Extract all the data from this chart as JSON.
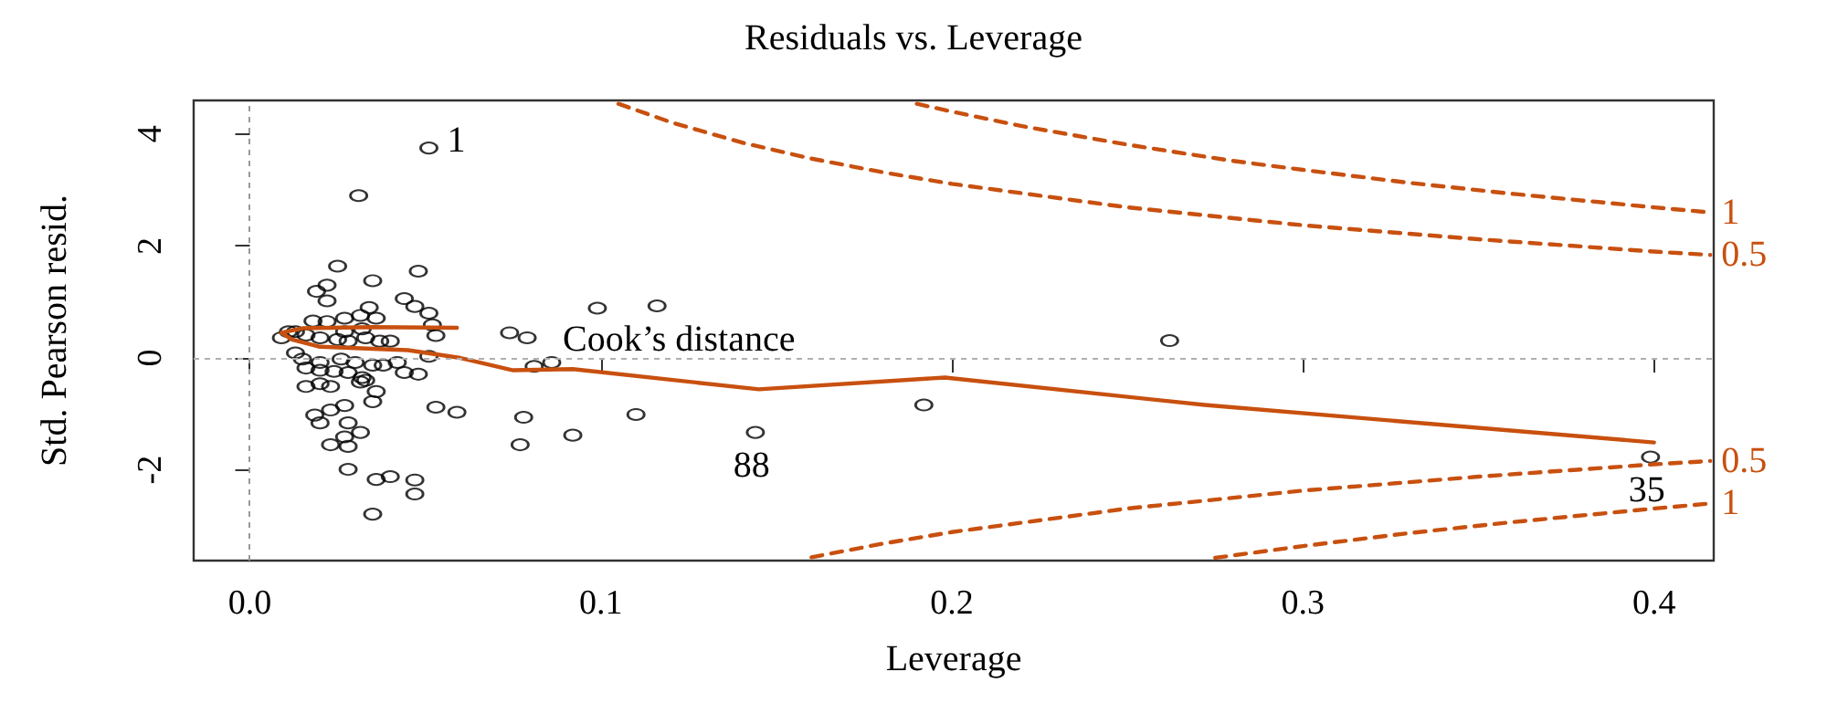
{
  "chart_data": {
    "type": "scatter",
    "title": "Residuals vs. Leverage",
    "xlabel": "Leverage",
    "ylabel": "Std. Pearson resid.",
    "xlim": [
      -0.016,
      0.417
    ],
    "ylim": [
      -3.62,
      4.6
    ],
    "xticks": [
      {
        "value": 0,
        "label": "0.0"
      },
      0.1,
      0.2,
      0.3,
      0.4
    ],
    "yticks": [
      -2,
      0,
      2,
      4
    ],
    "grid": false,
    "ref_lines": [
      {
        "axis": "x",
        "value": 0,
        "color": "#999999",
        "line_style": "dashed"
      },
      {
        "axis": "y",
        "value": 0,
        "color": "#b0b0b0",
        "line_style": "dashed"
      }
    ],
    "annotations": [
      {
        "text": "1",
        "x": 0.051,
        "y": 3.75
      },
      "Cook’s distance",
      {
        "text": "88",
        "x": 0.144,
        "y": -1.33
      },
      {
        "text": "35",
        "x": 0.399,
        "y": -1.77
      }
    ],
    "series": [
      {
        "type": "scatter",
        "color": "#000000",
        "marker": "circle",
        "x": [
          0.051,
          0.031,
          0.025,
          0.048,
          0.022,
          0.019,
          0.035,
          0.022,
          0.044,
          0.047,
          0.051,
          0.034,
          0.036,
          0.052,
          0.053,
          0.027,
          0.018,
          0.022,
          0.0315,
          0.011,
          0.013,
          0.009,
          0.016,
          0.02,
          0.025,
          0.028,
          0.033,
          0.037,
          0.04,
          0.032,
          0.027,
          0.013,
          0.015,
          0.02,
          0.026,
          0.03,
          0.035,
          0.038,
          0.042,
          0.051,
          0.016,
          0.02,
          0.024,
          0.028,
          0.032,
          0.0315,
          0.033,
          0.044,
          0.048,
          0.016,
          0.02,
          0.023,
          0.036,
          0.035,
          0.027,
          0.023,
          0.0185,
          0.02,
          0.028,
          0.0315,
          0.027,
          0.023,
          0.028,
          0.028,
          0.036,
          0.04,
          0.047,
          0.047,
          0.035,
          0.053,
          0.059,
          0.074,
          0.079,
          0.078,
          0.077,
          0.081,
          0.086,
          0.099,
          0.116,
          0.092,
          0.11,
          0.144,
          0.192,
          0.262,
          0.399
        ],
        "values": [
          3.75,
          2.9,
          1.64,
          1.55,
          1.3,
          1.19,
          1.38,
          1.02,
          1.06,
          0.92,
          0.8,
          0.9,
          0.71,
          0.59,
          0.4,
          0.71,
          0.66,
          0.65,
          0.76,
          0.47,
          0.47,
          0.36,
          0.41,
          0.36,
          0.33,
          0.3,
          0.36,
          0.3,
          0.3,
          0.52,
          0.47,
          0.09,
          -0.02,
          -0.08,
          -0.02,
          -0.08,
          -0.13,
          -0.13,
          -0.08,
          0.03,
          -0.18,
          -0.22,
          -0.24,
          -0.26,
          -0.35,
          -0.43,
          -0.4,
          -0.26,
          -0.29,
          -0.51,
          -0.46,
          -0.51,
          -0.6,
          -0.78,
          -0.85,
          -0.93,
          -1.02,
          -1.16,
          -1.16,
          -1.33,
          -1.41,
          -1.55,
          -1.58,
          -1.99,
          -2.17,
          -2.12,
          -2.18,
          -2.43,
          -2.79,
          -0.88,
          -0.97,
          0.45,
          0.36,
          -1.06,
          -1.55,
          -0.15,
          -0.08,
          0.89,
          0.93,
          -1.38,
          -1.01,
          -1.33,
          -0.84,
          0.31,
          -1.77
        ]
      },
      {
        "type": "line",
        "color": "#c8500f",
        "marker": "none",
        "line_style": "solid",
        "x": [
          0.059,
          0.035,
          0.015,
          0.009,
          0.012,
          0.02,
          0.045,
          0.06,
          0.075,
          0.092,
          0.145,
          0.198,
          0.272,
          0.4
        ],
        "values": [
          0.54,
          0.55,
          0.53,
          0.45,
          0.33,
          0.2,
          0.14,
          0.0,
          -0.22,
          -0.2,
          -0.56,
          -0.35,
          -0.84,
          -1.51
        ]
      },
      {
        "type": "line",
        "name": "1",
        "color": "#c8500f",
        "marker": "none",
        "line_style": "dashed",
        "x": [
          0.19,
          0.2,
          0.22,
          0.25,
          0.28,
          0.3,
          0.33,
          0.36,
          0.4,
          0.416
        ],
        "values": [
          4.54,
          4.4,
          4.14,
          3.81,
          3.52,
          3.36,
          3.13,
          2.93,
          2.69,
          2.6
        ]
      },
      {
        "type": "line",
        "name": "0.5",
        "color": "#c8500f",
        "marker": "none",
        "line_style": "dashed",
        "x": [
          0.105,
          0.12,
          0.14,
          0.16,
          0.18,
          0.2,
          0.25,
          0.3,
          0.35,
          0.4,
          0.416
        ],
        "values": [
          4.54,
          4.21,
          3.85,
          3.56,
          3.32,
          3.11,
          2.69,
          2.37,
          2.12,
          1.9,
          1.84
        ]
      },
      {
        "type": "line",
        "name": "0.5",
        "color": "#c8500f",
        "marker": "none",
        "line_style": "dashed",
        "x": [
          0.16,
          0.18,
          0.2,
          0.25,
          0.3,
          0.35,
          0.4,
          0.416
        ],
        "values": [
          -3.56,
          -3.32,
          -3.11,
          -2.69,
          -2.37,
          -2.12,
          -1.9,
          -1.84
        ]
      },
      {
        "type": "line",
        "name": "1",
        "color": "#c8500f",
        "marker": "none",
        "line_style": "dashed",
        "x": [
          0.275,
          0.3,
          0.33,
          0.36,
          0.4,
          0.416
        ],
        "values": [
          -3.57,
          -3.36,
          -3.13,
          -2.93,
          -2.69,
          -2.6
        ]
      }
    ]
  }
}
